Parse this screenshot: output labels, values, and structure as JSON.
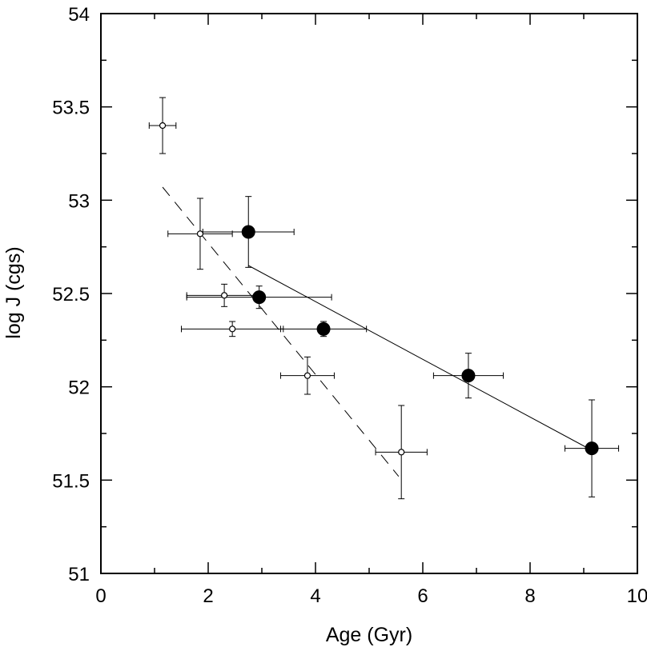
{
  "chart_data": {
    "type": "scatter",
    "title": "",
    "xlabel": "Age (Gyr)",
    "ylabel": "log J (cgs)",
    "xlim": [
      0,
      10
    ],
    "ylim": [
      51,
      54
    ],
    "grid": false,
    "x_ticks": [
      0,
      2,
      4,
      6,
      8,
      10
    ],
    "x_tick_labels": [
      "0",
      "2",
      "4",
      "6",
      "8",
      "10"
    ],
    "y_ticks": [
      51,
      51.5,
      52,
      52.5,
      53,
      53.5,
      54
    ],
    "y_tick_labels": [
      "51",
      "51.5",
      "52",
      "52.5",
      "53",
      "53.5",
      "54"
    ],
    "series": [
      {
        "name": "open circles",
        "marker": "open-circle",
        "points": [
          {
            "x": 1.15,
            "y": 53.4,
            "xerr": [
              0.25,
              0.25
            ],
            "yerr": [
              0.15,
              0.15
            ]
          },
          {
            "x": 1.85,
            "y": 52.82,
            "xerr": [
              0.6,
              0.6
            ],
            "yerr": [
              0.19,
              0.19
            ]
          },
          {
            "x": 2.3,
            "y": 52.49,
            "xerr": [
              0.7,
              0.7
            ],
            "yerr": [
              0.06,
              0.06
            ]
          },
          {
            "x": 2.45,
            "y": 52.31,
            "xerr": [
              0.95,
              0.95
            ],
            "yerr": [
              0.04,
              0.04
            ]
          },
          {
            "x": 3.85,
            "y": 52.06,
            "xerr": [
              0.5,
              0.5
            ],
            "yerr": [
              0.1,
              0.1
            ]
          },
          {
            "x": 5.6,
            "y": 51.65,
            "xerr": [
              0.48,
              0.48
            ],
            "yerr": [
              0.25,
              0.25
            ]
          }
        ]
      },
      {
        "name": "filled circles",
        "marker": "filled-circle",
        "points": [
          {
            "x": 2.75,
            "y": 52.83,
            "xerr": [
              0.85,
              0.85
            ],
            "yerr": [
              0.19,
              0.19
            ]
          },
          {
            "x": 2.95,
            "y": 52.48,
            "xerr": [
              1.35,
              1.35
            ],
            "yerr": [
              0.06,
              0.06
            ]
          },
          {
            "x": 4.15,
            "y": 52.31,
            "xerr": [
              0.8,
              0.8
            ],
            "yerr": [
              0.04,
              0.04
            ]
          },
          {
            "x": 6.85,
            "y": 52.06,
            "xerr": [
              0.65,
              0.65
            ],
            "yerr": [
              0.12,
              0.12
            ]
          },
          {
            "x": 9.15,
            "y": 51.67,
            "xerr": [
              0.5,
              0.5
            ],
            "yerr": [
              0.26,
              0.26
            ]
          }
        ]
      }
    ],
    "fit_lines": [
      {
        "name": "dashed fit",
        "style": "dashed",
        "x": [
          1.15,
          5.55
        ],
        "y": [
          53.07,
          51.52
        ]
      },
      {
        "name": "solid fit",
        "style": "solid",
        "x": [
          2.75,
          9.15
        ],
        "y": [
          52.65,
          51.66
        ]
      }
    ]
  }
}
